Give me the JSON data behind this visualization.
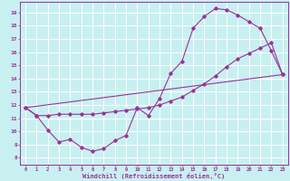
{
  "xlabel": "Windchill (Refroidissement éolien,°C)",
  "xlim": [
    -0.5,
    23.5
  ],
  "ylim": [
    7.5,
    19.8
  ],
  "yticks": [
    8,
    9,
    10,
    11,
    12,
    13,
    14,
    15,
    16,
    17,
    18,
    19
  ],
  "xticks": [
    0,
    1,
    2,
    3,
    4,
    5,
    6,
    7,
    8,
    9,
    10,
    11,
    12,
    13,
    14,
    15,
    16,
    17,
    18,
    19,
    20,
    21,
    22,
    23
  ],
  "bg_color": "#c8f0f0",
  "line_color": "#993399",
  "grid_color": "#ffffff",
  "line1_x": [
    0,
    1,
    2,
    3,
    4,
    5,
    6,
    7,
    8,
    9,
    10,
    11,
    12,
    13,
    14,
    15,
    16,
    17,
    18,
    19,
    20,
    21,
    22,
    23
  ],
  "line1_y": [
    11.8,
    11.2,
    10.1,
    9.2,
    9.4,
    8.8,
    8.5,
    8.7,
    9.3,
    9.7,
    11.8,
    11.2,
    12.5,
    14.4,
    15.3,
    17.8,
    18.7,
    19.3,
    19.2,
    18.8,
    18.3,
    17.8,
    16.1,
    14.3
  ],
  "line2_x": [
    0,
    1,
    2,
    3,
    4,
    5,
    6,
    7,
    8,
    9,
    10,
    11,
    12,
    13,
    14,
    15,
    16,
    17,
    18,
    19,
    20,
    21,
    22,
    23
  ],
  "line2_y": [
    11.8,
    11.2,
    11.2,
    11.3,
    11.3,
    11.3,
    11.3,
    11.4,
    11.5,
    11.6,
    11.7,
    11.8,
    12.0,
    12.3,
    12.6,
    13.1,
    13.6,
    14.2,
    14.9,
    15.5,
    15.9,
    16.3,
    16.7,
    14.3
  ],
  "line3_x": [
    0,
    23
  ],
  "line3_y": [
    11.8,
    14.3
  ]
}
